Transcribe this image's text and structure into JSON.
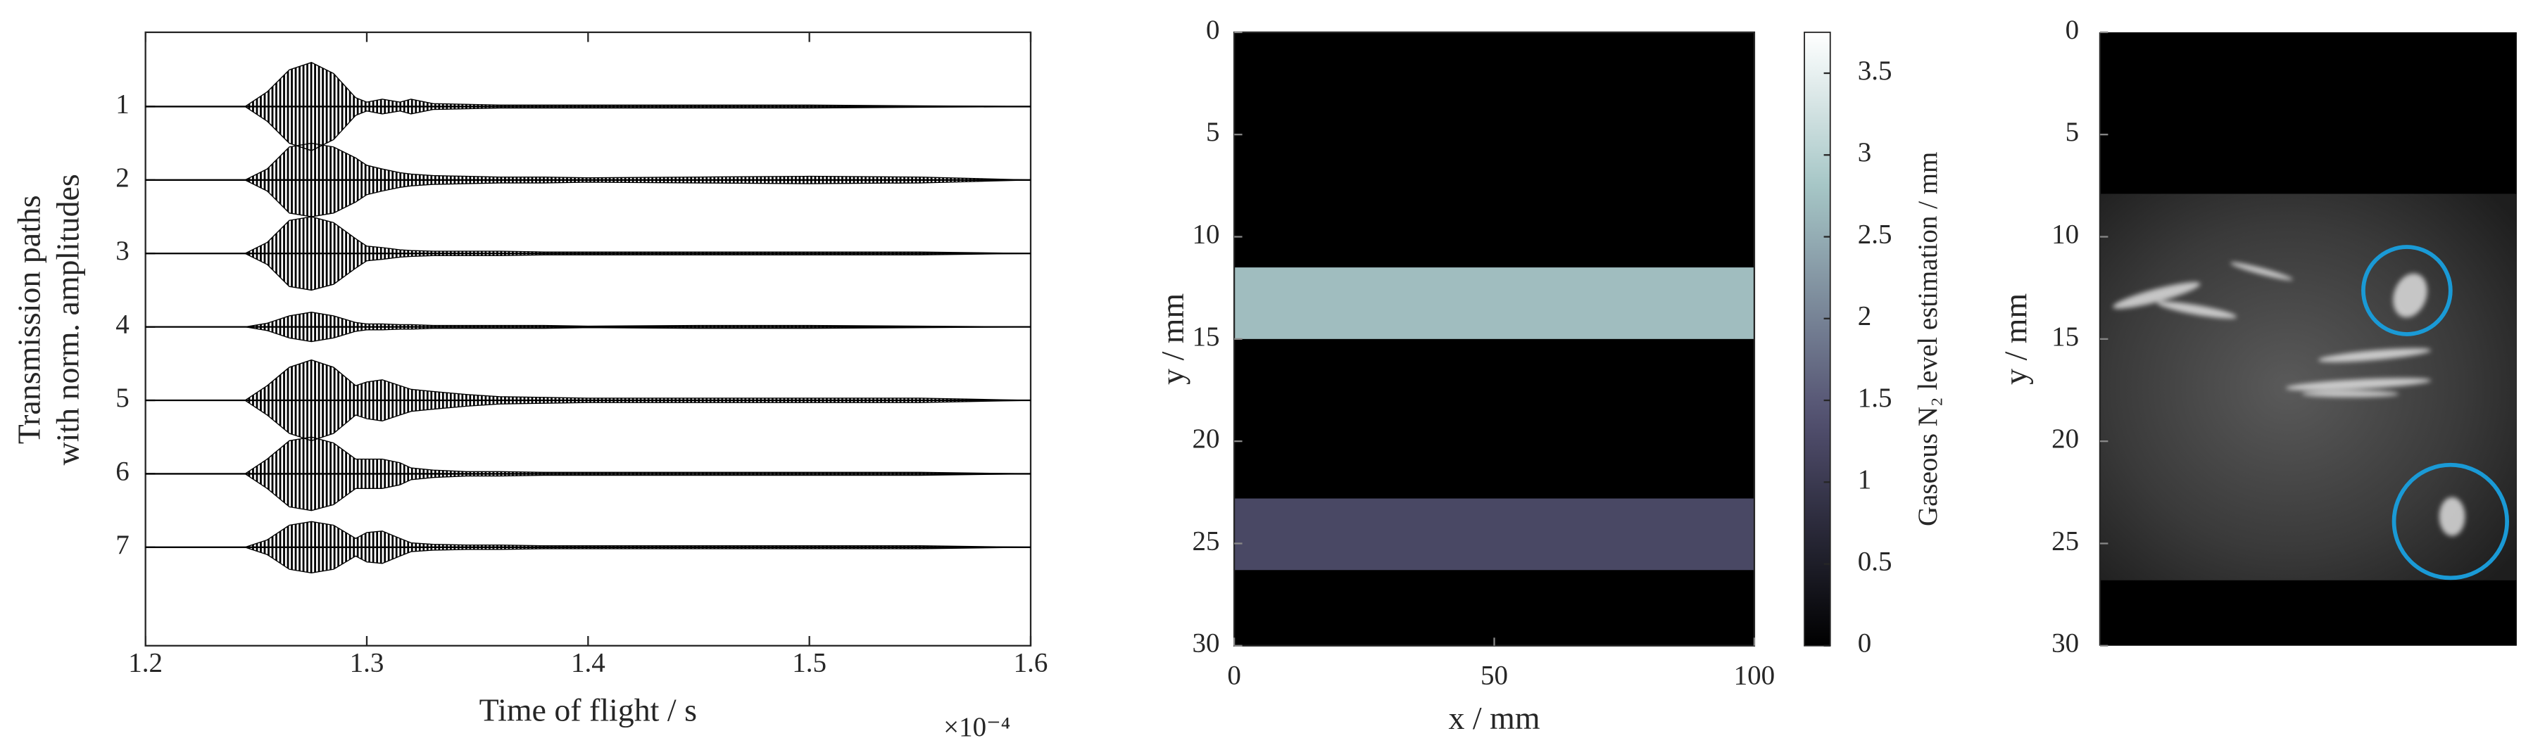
{
  "chart_data": [
    {
      "type": "waveform",
      "ylabel": [
        "Transmission paths",
        "with norm. amplitudes"
      ],
      "xlabel": "Time of flight / s",
      "x_multiplier": "×10⁻⁴",
      "xlim": [
        1.2,
        1.6
      ],
      "xticks": [
        1.2,
        1.3,
        1.4,
        1.5,
        1.6
      ],
      "categories": [
        "1",
        "2",
        "3",
        "4",
        "5",
        "6",
        "7"
      ],
      "x": [
        1.2,
        1.245,
        1.255,
        1.265,
        1.275,
        1.285,
        1.295,
        1.3,
        1.307,
        1.315,
        1.32,
        1.33,
        1.345,
        1.36,
        1.38,
        1.4,
        1.45,
        1.5,
        1.55,
        1.6
      ],
      "series": [
        {
          "color": "#000000",
          "values": [
            0,
            0,
            0.2,
            0.5,
            0.6,
            0.45,
            0.12,
            0.06,
            0.1,
            0.06,
            0.1,
            0.04,
            0.03,
            0.02,
            0.02,
            0.02,
            0.02,
            0.02,
            0.01,
            0
          ]
        },
        {
          "color": "#000000",
          "values": [
            0,
            0,
            0.15,
            0.45,
            0.5,
            0.45,
            0.3,
            0.2,
            0.15,
            0.1,
            0.08,
            0.06,
            0.05,
            0.04,
            0.04,
            0.03,
            0.04,
            0.05,
            0.04,
            0
          ]
        },
        {
          "color": "#000000",
          "values": [
            0,
            0,
            0.15,
            0.45,
            0.5,
            0.42,
            0.2,
            0.1,
            0.08,
            0.05,
            0.04,
            0.03,
            0.03,
            0.03,
            0.02,
            0.02,
            0.02,
            0.02,
            0.02,
            0
          ]
        },
        {
          "color": "#000000",
          "values": [
            0,
            0,
            0.05,
            0.15,
            0.2,
            0.15,
            0.06,
            0.04,
            0.04,
            0.03,
            0.03,
            0.02,
            0.02,
            0.02,
            0.02,
            0.01,
            0.02,
            0.02,
            0.01,
            0
          ]
        },
        {
          "color": "#000000",
          "values": [
            0,
            0,
            0.2,
            0.45,
            0.55,
            0.45,
            0.2,
            0.25,
            0.28,
            0.2,
            0.15,
            0.12,
            0.08,
            0.05,
            0.04,
            0.03,
            0.03,
            0.03,
            0.03,
            0
          ]
        },
        {
          "color": "#000000",
          "values": [
            0,
            0,
            0.2,
            0.45,
            0.5,
            0.42,
            0.2,
            0.2,
            0.2,
            0.15,
            0.08,
            0.05,
            0.03,
            0.03,
            0.02,
            0.02,
            0.02,
            0.02,
            0.02,
            0
          ]
        },
        {
          "color": "#000000",
          "values": [
            0,
            0,
            0.1,
            0.3,
            0.35,
            0.3,
            0.12,
            0.2,
            0.22,
            0.12,
            0.06,
            0.04,
            0.03,
            0.03,
            0.02,
            0.02,
            0.02,
            0.02,
            0.02,
            0
          ]
        }
      ]
    },
    {
      "type": "heatmap",
      "xlabel": "x / mm",
      "ylabel": "y / mm",
      "xlim": [
        0,
        100
      ],
      "xticks": [
        0,
        50,
        100
      ],
      "ylim": [
        0,
        30
      ],
      "yticks": [
        0,
        5,
        10,
        15,
        20,
        25,
        30
      ],
      "y_inverted": true,
      "background_value": 0,
      "regions": [
        {
          "x": [
            0,
            100
          ],
          "y": [
            11.5,
            15
          ],
          "value": 2.7
        },
        {
          "x": [
            0,
            100
          ],
          "y": [
            22.8,
            26.3
          ],
          "value": 1.24
        }
      ],
      "colormap": "bone",
      "clim": [
        0,
        3.75
      ],
      "cticks": [
        0,
        0.5,
        1,
        1.5,
        2,
        2.5,
        3,
        3.5
      ],
      "colorbar_label": "Gaseous N₂ level estimation / mm"
    },
    {
      "type": "image",
      "ylabel": "y / mm",
      "ylim": [
        0,
        30
      ],
      "yticks": [
        0,
        5,
        10,
        15,
        20,
        25,
        30
      ],
      "y_inverted": true,
      "image_y": [
        7.9,
        26.8
      ],
      "circle_color": "#1a9ad6"
    }
  ]
}
